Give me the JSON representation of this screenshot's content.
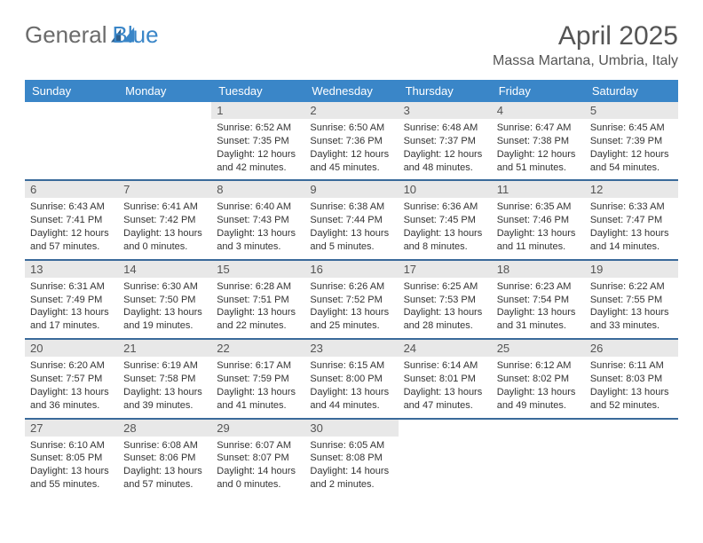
{
  "logo": {
    "part1": "General",
    "part2": "Blue"
  },
  "title": "April 2025",
  "location": "Massa Martana, Umbria, Italy",
  "colors": {
    "header_bg": "#3a86c8",
    "header_text": "#ffffff",
    "daynum_bg": "#e8e8e8",
    "row_border": "#3a6a9a"
  },
  "weekdays": [
    "Sunday",
    "Monday",
    "Tuesday",
    "Wednesday",
    "Thursday",
    "Friday",
    "Saturday"
  ],
  "weeks": [
    [
      null,
      null,
      {
        "n": "1",
        "sr": "6:52 AM",
        "ss": "7:35 PM",
        "dl": "12 hours and 42 minutes."
      },
      {
        "n": "2",
        "sr": "6:50 AM",
        "ss": "7:36 PM",
        "dl": "12 hours and 45 minutes."
      },
      {
        "n": "3",
        "sr": "6:48 AM",
        "ss": "7:37 PM",
        "dl": "12 hours and 48 minutes."
      },
      {
        "n": "4",
        "sr": "6:47 AM",
        "ss": "7:38 PM",
        "dl": "12 hours and 51 minutes."
      },
      {
        "n": "5",
        "sr": "6:45 AM",
        "ss": "7:39 PM",
        "dl": "12 hours and 54 minutes."
      }
    ],
    [
      {
        "n": "6",
        "sr": "6:43 AM",
        "ss": "7:41 PM",
        "dl": "12 hours and 57 minutes."
      },
      {
        "n": "7",
        "sr": "6:41 AM",
        "ss": "7:42 PM",
        "dl": "13 hours and 0 minutes."
      },
      {
        "n": "8",
        "sr": "6:40 AM",
        "ss": "7:43 PM",
        "dl": "13 hours and 3 minutes."
      },
      {
        "n": "9",
        "sr": "6:38 AM",
        "ss": "7:44 PM",
        "dl": "13 hours and 5 minutes."
      },
      {
        "n": "10",
        "sr": "6:36 AM",
        "ss": "7:45 PM",
        "dl": "13 hours and 8 minutes."
      },
      {
        "n": "11",
        "sr": "6:35 AM",
        "ss": "7:46 PM",
        "dl": "13 hours and 11 minutes."
      },
      {
        "n": "12",
        "sr": "6:33 AM",
        "ss": "7:47 PM",
        "dl": "13 hours and 14 minutes."
      }
    ],
    [
      {
        "n": "13",
        "sr": "6:31 AM",
        "ss": "7:49 PM",
        "dl": "13 hours and 17 minutes."
      },
      {
        "n": "14",
        "sr": "6:30 AM",
        "ss": "7:50 PM",
        "dl": "13 hours and 19 minutes."
      },
      {
        "n": "15",
        "sr": "6:28 AM",
        "ss": "7:51 PM",
        "dl": "13 hours and 22 minutes."
      },
      {
        "n": "16",
        "sr": "6:26 AM",
        "ss": "7:52 PM",
        "dl": "13 hours and 25 minutes."
      },
      {
        "n": "17",
        "sr": "6:25 AM",
        "ss": "7:53 PM",
        "dl": "13 hours and 28 minutes."
      },
      {
        "n": "18",
        "sr": "6:23 AM",
        "ss": "7:54 PM",
        "dl": "13 hours and 31 minutes."
      },
      {
        "n": "19",
        "sr": "6:22 AM",
        "ss": "7:55 PM",
        "dl": "13 hours and 33 minutes."
      }
    ],
    [
      {
        "n": "20",
        "sr": "6:20 AM",
        "ss": "7:57 PM",
        "dl": "13 hours and 36 minutes."
      },
      {
        "n": "21",
        "sr": "6:19 AM",
        "ss": "7:58 PM",
        "dl": "13 hours and 39 minutes."
      },
      {
        "n": "22",
        "sr": "6:17 AM",
        "ss": "7:59 PM",
        "dl": "13 hours and 41 minutes."
      },
      {
        "n": "23",
        "sr": "6:15 AM",
        "ss": "8:00 PM",
        "dl": "13 hours and 44 minutes."
      },
      {
        "n": "24",
        "sr": "6:14 AM",
        "ss": "8:01 PM",
        "dl": "13 hours and 47 minutes."
      },
      {
        "n": "25",
        "sr": "6:12 AM",
        "ss": "8:02 PM",
        "dl": "13 hours and 49 minutes."
      },
      {
        "n": "26",
        "sr": "6:11 AM",
        "ss": "8:03 PM",
        "dl": "13 hours and 52 minutes."
      }
    ],
    [
      {
        "n": "27",
        "sr": "6:10 AM",
        "ss": "8:05 PM",
        "dl": "13 hours and 55 minutes."
      },
      {
        "n": "28",
        "sr": "6:08 AM",
        "ss": "8:06 PM",
        "dl": "13 hours and 57 minutes."
      },
      {
        "n": "29",
        "sr": "6:07 AM",
        "ss": "8:07 PM",
        "dl": "14 hours and 0 minutes."
      },
      {
        "n": "30",
        "sr": "6:05 AM",
        "ss": "8:08 PM",
        "dl": "14 hours and 2 minutes."
      },
      null,
      null,
      null
    ]
  ],
  "labels": {
    "sunrise": "Sunrise:",
    "sunset": "Sunset:",
    "daylight": "Daylight:"
  }
}
